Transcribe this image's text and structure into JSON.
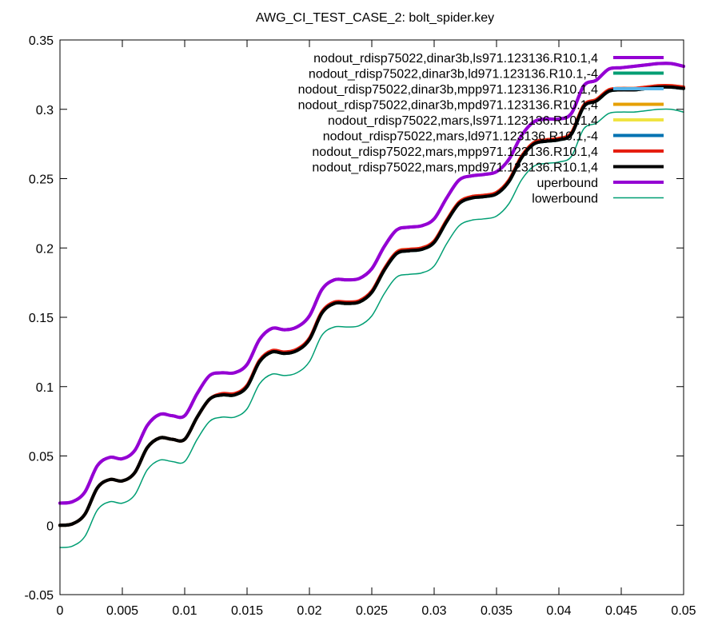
{
  "chart_data": {
    "type": "line",
    "title": "AWG_CI_TEST_CASE_2: bolt_spider.key",
    "xlabel": "",
    "ylabel": "",
    "xlim": [
      0,
      0.05
    ],
    "ylim": [
      -0.05,
      0.35
    ],
    "xticks": [
      0,
      0.005,
      0.01,
      0.015,
      0.02,
      0.025,
      0.03,
      0.035,
      0.04,
      0.045,
      0.05
    ],
    "xtick_labels": [
      "0",
      "0.005",
      "0.01",
      "0.015",
      "0.02",
      "0.025",
      "0.03",
      "0.035",
      "0.04",
      "0.045",
      "0.05"
    ],
    "yticks": [
      -0.05,
      0,
      0.05,
      0.1,
      0.15,
      0.2,
      0.25,
      0.3,
      0.35
    ],
    "ytick_labels": [
      "-0.05",
      "0",
      "0.05",
      "0.1",
      "0.15",
      "0.2",
      "0.25",
      "0.3",
      "0.35"
    ],
    "grid": false,
    "legend_position": "top-right",
    "x": [
      0,
      0.001,
      0.002,
      0.003,
      0.004,
      0.005,
      0.006,
      0.007,
      0.008,
      0.009,
      0.01,
      0.011,
      0.012,
      0.013,
      0.014,
      0.015,
      0.016,
      0.017,
      0.018,
      0.019,
      0.02,
      0.021,
      0.022,
      0.023,
      0.024,
      0.025,
      0.026,
      0.027,
      0.028,
      0.029,
      0.03,
      0.031,
      0.032,
      0.033,
      0.034,
      0.035,
      0.036,
      0.037,
      0.038,
      0.039,
      0.04,
      0.041,
      0.042,
      0.043,
      0.044,
      0.045,
      0.046,
      0.047,
      0.048,
      0.049,
      0.05
    ],
    "series": [
      {
        "name": "nodout_rdisp75022,dinar3b,ls971.123136.R10.1,4",
        "color": "#9400d3",
        "width": 4,
        "values": [
          0.016,
          0.017,
          0.024,
          0.043,
          0.049,
          0.048,
          0.054,
          0.072,
          0.08,
          0.079,
          0.079,
          0.095,
          0.108,
          0.11,
          0.11,
          0.116,
          0.134,
          0.142,
          0.141,
          0.143,
          0.151,
          0.17,
          0.177,
          0.177,
          0.178,
          0.185,
          0.201,
          0.213,
          0.215,
          0.216,
          0.221,
          0.236,
          0.249,
          0.252,
          0.253,
          0.255,
          0.264,
          0.281,
          0.291,
          0.293,
          0.293,
          0.297,
          0.317,
          0.321,
          0.329,
          0.33,
          0.331,
          0.332,
          0.333,
          0.333,
          0.331
        ]
      },
      {
        "name": "nodout_rdisp75022,dinar3b,ld971.123136.R10.1,-4",
        "color": "#009e73",
        "width": 4,
        "values": [
          0.0,
          0.001,
          0.008,
          0.027,
          0.033,
          0.032,
          0.038,
          0.056,
          0.063,
          0.062,
          0.062,
          0.078,
          0.091,
          0.094,
          0.094,
          0.1,
          0.118,
          0.125,
          0.124,
          0.126,
          0.134,
          0.153,
          0.16,
          0.16,
          0.161,
          0.168,
          0.184,
          0.196,
          0.198,
          0.199,
          0.204,
          0.219,
          0.232,
          0.236,
          0.237,
          0.239,
          0.248,
          0.265,
          0.275,
          0.277,
          0.278,
          0.282,
          0.302,
          0.306,
          0.313,
          0.314,
          0.314,
          0.315,
          0.316,
          0.316,
          0.315
        ]
      },
      {
        "name": "nodout_rdisp75022,dinar3b,mpp971.123136.R10.1,4",
        "color": "#56b4e9",
        "width": 4,
        "values": [
          0.0,
          0.001,
          0.008,
          0.027,
          0.033,
          0.032,
          0.038,
          0.056,
          0.063,
          0.062,
          0.062,
          0.078,
          0.091,
          0.094,
          0.094,
          0.1,
          0.118,
          0.125,
          0.124,
          0.126,
          0.134,
          0.153,
          0.16,
          0.16,
          0.161,
          0.168,
          0.184,
          0.196,
          0.198,
          0.199,
          0.204,
          0.219,
          0.232,
          0.236,
          0.237,
          0.239,
          0.248,
          0.265,
          0.275,
          0.277,
          0.278,
          0.282,
          0.302,
          0.306,
          0.313,
          0.314,
          0.314,
          0.315,
          0.316,
          0.316,
          0.315
        ]
      },
      {
        "name": "nodout_rdisp75022,dinar3b,mpd971.123136.R10.1,4",
        "color": "#e69f00",
        "width": 4,
        "values": [
          0.0,
          0.001,
          0.008,
          0.027,
          0.033,
          0.032,
          0.038,
          0.056,
          0.063,
          0.062,
          0.062,
          0.078,
          0.091,
          0.094,
          0.094,
          0.1,
          0.118,
          0.125,
          0.124,
          0.126,
          0.134,
          0.153,
          0.16,
          0.16,
          0.161,
          0.168,
          0.184,
          0.197,
          0.199,
          0.2,
          0.205,
          0.22,
          0.233,
          0.237,
          0.238,
          0.24,
          0.249,
          0.266,
          0.276,
          0.278,
          0.279,
          0.283,
          0.303,
          0.307,
          0.314,
          0.315,
          0.315,
          0.316,
          0.317,
          0.317,
          0.316
        ]
      },
      {
        "name": "nodout_rdisp75022,mars,ls971.123136.R10.1,4",
        "color": "#f0e442",
        "width": 4,
        "values": [
          0.0,
          0.001,
          0.008,
          0.027,
          0.033,
          0.032,
          0.038,
          0.056,
          0.063,
          0.062,
          0.062,
          0.078,
          0.091,
          0.094,
          0.094,
          0.1,
          0.118,
          0.125,
          0.124,
          0.126,
          0.134,
          0.153,
          0.16,
          0.16,
          0.161,
          0.168,
          0.184,
          0.196,
          0.198,
          0.199,
          0.204,
          0.219,
          0.232,
          0.236,
          0.237,
          0.239,
          0.248,
          0.265,
          0.275,
          0.277,
          0.278,
          0.282,
          0.302,
          0.306,
          0.313,
          0.314,
          0.314,
          0.315,
          0.316,
          0.316,
          0.315
        ]
      },
      {
        "name": "nodout_rdisp75022,mars,ld971.123136.R10.1,-4",
        "color": "#0072b2",
        "width": 4,
        "values": [
          0.0,
          0.001,
          0.008,
          0.027,
          0.033,
          0.032,
          0.038,
          0.056,
          0.063,
          0.062,
          0.062,
          0.078,
          0.091,
          0.094,
          0.094,
          0.1,
          0.118,
          0.125,
          0.124,
          0.126,
          0.134,
          0.153,
          0.16,
          0.16,
          0.161,
          0.168,
          0.184,
          0.196,
          0.198,
          0.199,
          0.204,
          0.219,
          0.232,
          0.236,
          0.237,
          0.239,
          0.248,
          0.265,
          0.275,
          0.277,
          0.278,
          0.282,
          0.302,
          0.306,
          0.313,
          0.314,
          0.314,
          0.315,
          0.316,
          0.316,
          0.315
        ]
      },
      {
        "name": "nodout_rdisp75022,mars,mpp971.123136.R10.1,4",
        "color": "#e51e10",
        "width": 4,
        "values": [
          0.0,
          0.001,
          0.008,
          0.027,
          0.033,
          0.032,
          0.038,
          0.056,
          0.063,
          0.062,
          0.062,
          0.078,
          0.091,
          0.095,
          0.095,
          0.101,
          0.119,
          0.126,
          0.125,
          0.127,
          0.135,
          0.154,
          0.161,
          0.161,
          0.162,
          0.169,
          0.185,
          0.197,
          0.199,
          0.2,
          0.205,
          0.22,
          0.233,
          0.237,
          0.238,
          0.24,
          0.249,
          0.266,
          0.276,
          0.278,
          0.279,
          0.283,
          0.303,
          0.307,
          0.314,
          0.315,
          0.315,
          0.316,
          0.317,
          0.317,
          0.316
        ]
      },
      {
        "name": "nodout_rdisp75022,mars,mpd971.123136.R10.1,4",
        "color": "#000000",
        "width": 4,
        "values": [
          0.0,
          0.001,
          0.008,
          0.027,
          0.033,
          0.032,
          0.038,
          0.056,
          0.063,
          0.062,
          0.062,
          0.078,
          0.091,
          0.094,
          0.094,
          0.1,
          0.118,
          0.125,
          0.124,
          0.126,
          0.134,
          0.153,
          0.16,
          0.16,
          0.161,
          0.168,
          0.184,
          0.196,
          0.198,
          0.199,
          0.204,
          0.219,
          0.232,
          0.236,
          0.237,
          0.239,
          0.248,
          0.265,
          0.275,
          0.277,
          0.278,
          0.282,
          0.302,
          0.306,
          0.313,
          0.314,
          0.314,
          0.315,
          0.316,
          0.316,
          0.315
        ]
      },
      {
        "name": "upperbound",
        "legend_label": "uperbound",
        "color": "#9400d3",
        "width": 4,
        "values": [
          0.016,
          0.017,
          0.024,
          0.043,
          0.049,
          0.048,
          0.054,
          0.072,
          0.08,
          0.079,
          0.079,
          0.095,
          0.108,
          0.11,
          0.11,
          0.116,
          0.134,
          0.142,
          0.141,
          0.143,
          0.151,
          0.17,
          0.177,
          0.177,
          0.178,
          0.185,
          0.201,
          0.213,
          0.215,
          0.216,
          0.221,
          0.236,
          0.249,
          0.252,
          0.253,
          0.255,
          0.264,
          0.281,
          0.291,
          0.293,
          0.293,
          0.297,
          0.317,
          0.321,
          0.329,
          0.33,
          0.331,
          0.332,
          0.333,
          0.333,
          0.331
        ]
      },
      {
        "name": "lowerbound",
        "legend_label": "lowerbound",
        "color": "#009e73",
        "width": 1.5,
        "values": [
          -0.016,
          -0.015,
          -0.008,
          0.011,
          0.017,
          0.016,
          0.022,
          0.04,
          0.047,
          0.046,
          0.046,
          0.062,
          0.075,
          0.078,
          0.078,
          0.084,
          0.102,
          0.109,
          0.108,
          0.11,
          0.118,
          0.137,
          0.143,
          0.143,
          0.144,
          0.151,
          0.167,
          0.179,
          0.181,
          0.182,
          0.187,
          0.203,
          0.216,
          0.22,
          0.221,
          0.223,
          0.232,
          0.249,
          0.259,
          0.261,
          0.262,
          0.266,
          0.286,
          0.29,
          0.297,
          0.298,
          0.298,
          0.299,
          0.3,
          0.3,
          0.298
        ]
      }
    ]
  }
}
